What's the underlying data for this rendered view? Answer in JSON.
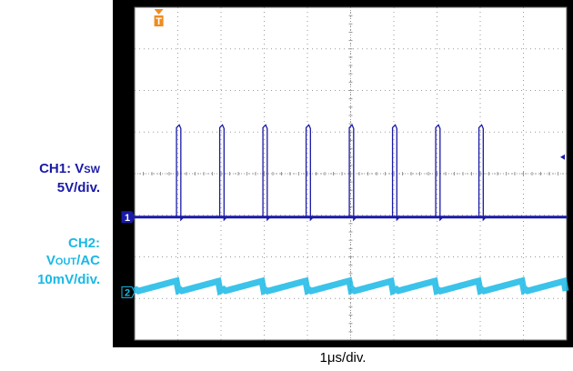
{
  "ch1_label": {
    "prefix": "CH1: V",
    "sub": "SW",
    "scale": "5V/div."
  },
  "ch2_label": {
    "line1": "CH2:",
    "prefix": "V",
    "sub": "OUT",
    "suffix": "/AC",
    "scale": "10mV/div."
  },
  "x_caption": "1μs/div.",
  "colors": {
    "ch1": "#1a1aa8",
    "ch2": "#19b8e6",
    "trigger": "#f08c1e",
    "background": "#ffffff",
    "grid": "#9a9a9a",
    "frame": "#000000"
  },
  "chart_data": {
    "type": "line",
    "title": "",
    "xlabel": "1μs/div.",
    "ylabel": "",
    "grid": true,
    "divisions": {
      "x": 10,
      "y": 8
    },
    "time_per_div_us": 1,
    "xlim_us": [
      0,
      10
    ],
    "series": [
      {
        "name": "CH1: VSW",
        "color": "#1a1aa8",
        "scale": "5V/div.",
        "baseline_div": 0,
        "waveform": "pulse",
        "period_us": 1.0,
        "first_rise_us": 0.97,
        "pulse_width_us": 0.1,
        "high_div": 2.15,
        "high_V": 10.8,
        "pulse_count": 8
      },
      {
        "name": "CH2: VOUT/AC",
        "color": "#19b8e6",
        "scale": "10mV/div.",
        "waveform": "ripple",
        "period_us": 1.0,
        "ripple_pp_div": 0.25,
        "ripple_pp_mV": 2.5
      }
    ],
    "markers": {
      "trigger": "T",
      "ch1_ground": "1",
      "ch2_ground": "2"
    }
  }
}
